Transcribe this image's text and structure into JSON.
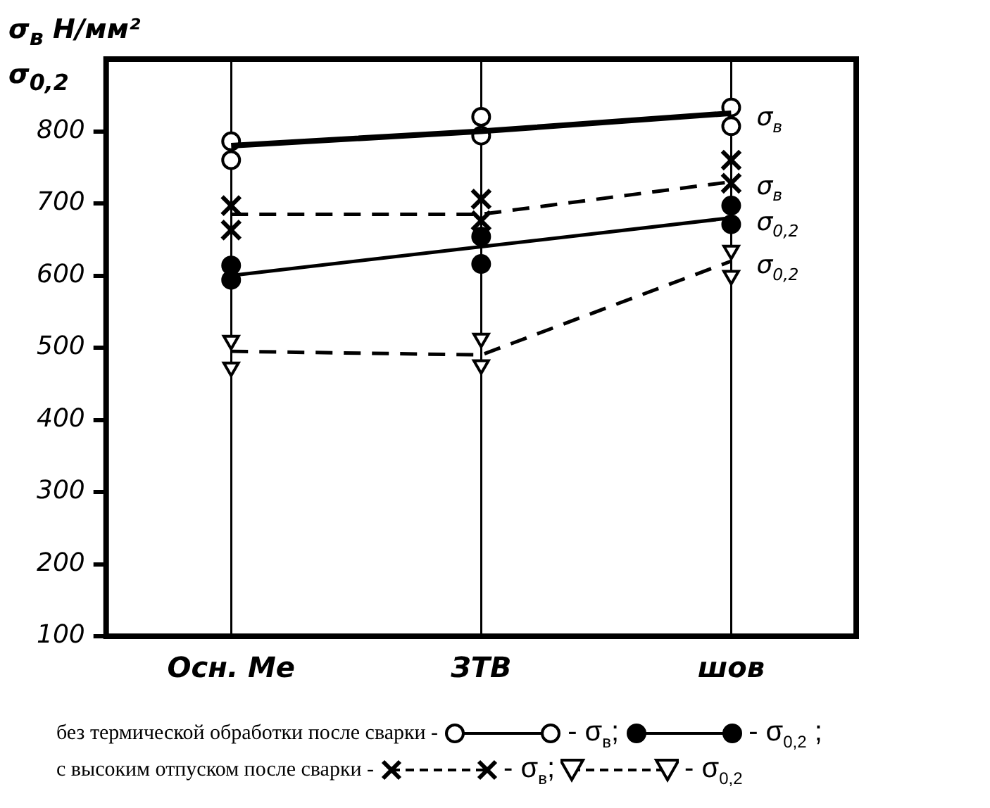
{
  "chart_data": {
    "type": "line",
    "ylabel": "σ$_{в}$ Н/мм² σ$_{0,2}$",
    "categories": [
      "Осн. Ме",
      "ЗТВ",
      "шов"
    ],
    "ylim": [
      100,
      900
    ],
    "yticks": [
      100,
      200,
      300,
      400,
      500,
      600,
      700,
      800
    ],
    "grid": "x",
    "annotations": [
      "без термической обработки после сварки -",
      "- σ$_{в}$;",
      "- σ$_{0,2}$ ;",
      "с высоким отпуском после сварки -",
      "- σ$_{в}$;",
      "- σ$_{0,2}$"
    ],
    "series": [
      {
        "type": "line",
        "name": "σ$_{в}$",
        "color": "#000000",
        "line_style": "solid",
        "marker": "none",
        "values": [
          780,
          800,
          825
        ]
      },
      {
        "type": "line",
        "name": "σ$_{0,2}$",
        "color": "#000000",
        "line_style": "solid",
        "marker": "none",
        "values": [
          600,
          640,
          680
        ]
      },
      {
        "type": "line",
        "name": "σ$_{в}$",
        "color": "#000000",
        "line_style": "dashed",
        "marker": "none",
        "values": [
          685,
          685,
          730
        ]
      },
      {
        "type": "line",
        "name": "σ$_{0,2}$",
        "color": "#000000",
        "line_style": "dashed",
        "marker": "none",
        "values": [
          495,
          490,
          620
        ]
      },
      {
        "type": "scatter",
        "color": "#ffffff",
        "marker": "circle",
        "x": [
          "Осн. Ме",
          "Осн. Ме",
          "ЗТВ",
          "ЗТВ",
          "шов",
          "шов"
        ],
        "values": [
          786,
          760,
          820,
          794,
          833,
          807
        ]
      },
      {
        "type": "scatter",
        "color": "#000000",
        "marker": "circle",
        "x": [
          "Осн. Ме",
          "Осн. Ме",
          "ЗТВ",
          "ЗТВ",
          "шов",
          "шов"
        ],
        "values": [
          614,
          594,
          654,
          616,
          697,
          671
        ]
      },
      {
        "type": "scatter",
        "color": "#000000",
        "marker": "cross",
        "x": [
          "Осн. Ме",
          "Осн. Ме",
          "ЗТВ",
          "ЗТВ",
          "шов",
          "шов"
        ],
        "values": [
          697,
          663,
          706,
          676,
          760,
          728
        ]
      },
      {
        "type": "scatter",
        "color": "#ffffff",
        "marker": "triangle",
        "x": [
          "Осн. Ме",
          "Осн. Ме",
          "ЗТВ",
          "ЗТВ",
          "шов",
          "шов"
        ],
        "values": [
          510,
          473,
          513,
          476,
          635,
          600
        ]
      }
    ]
  }
}
